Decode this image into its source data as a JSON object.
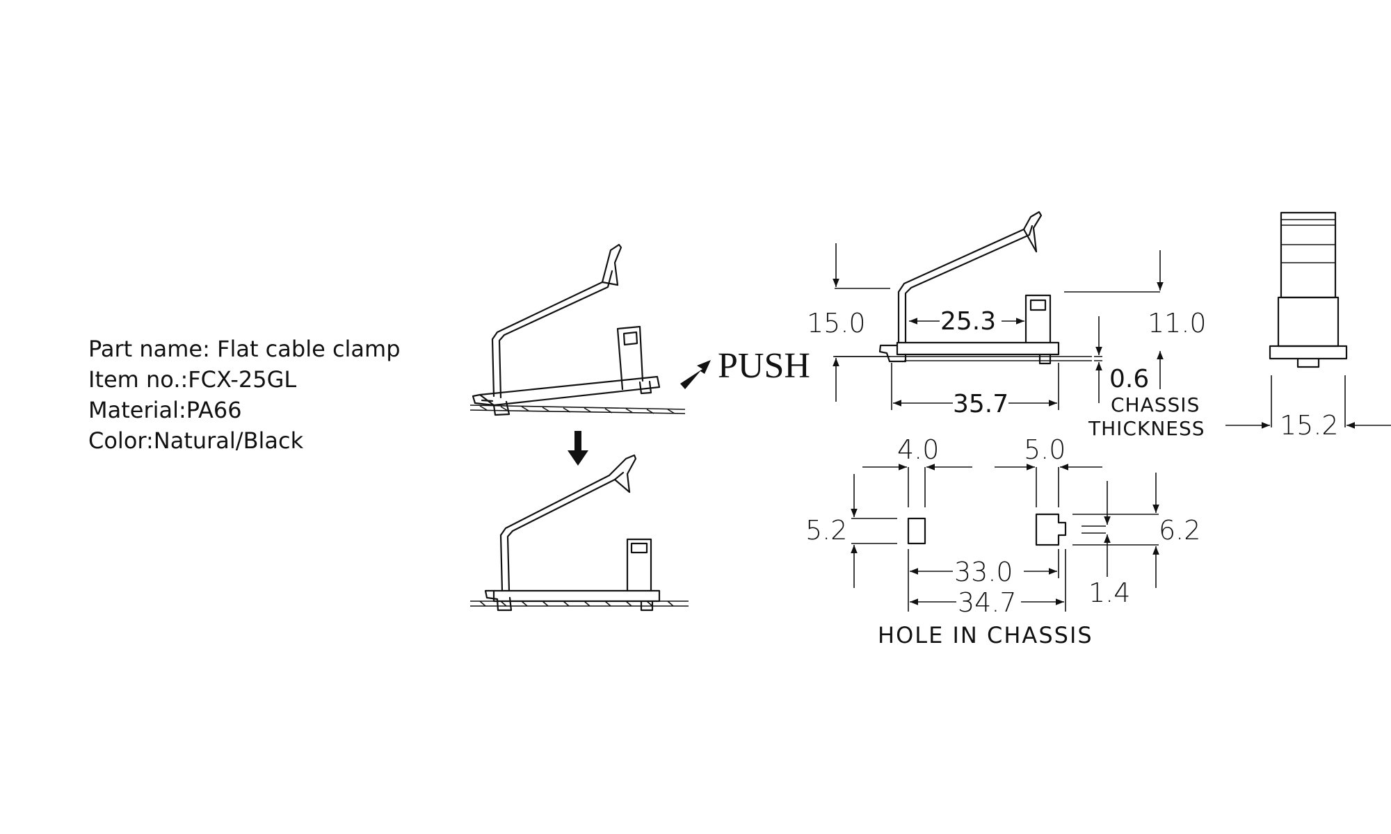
{
  "spec": {
    "part_name": "Part name: Flat cable clamp",
    "item_no": "Item no.:FCX-25GL",
    "material": "Material:PA66",
    "color": "Color:Natural/Black"
  },
  "install": {
    "push_label": "PUSH"
  },
  "side_view": {
    "height": "15.0",
    "inner_length": "25.3",
    "clip_height": "11.0",
    "base_length": "35.7",
    "chassis_thickness_value": "0.6",
    "chassis_label_line1": "CHASSIS",
    "chassis_label_line2": "THICKNESS"
  },
  "end_view": {
    "width": "15.2"
  },
  "hole": {
    "hole1_width": "4.0",
    "hole2_width": "5.0",
    "hole1_height": "5.2",
    "hole2_height": "6.2",
    "center_distance": "33.0",
    "overall_distance": "34.7",
    "notch": "1.4",
    "label": "HOLE IN CHASSIS"
  },
  "colors": {
    "line": "#111111",
    "background": "#ffffff"
  }
}
